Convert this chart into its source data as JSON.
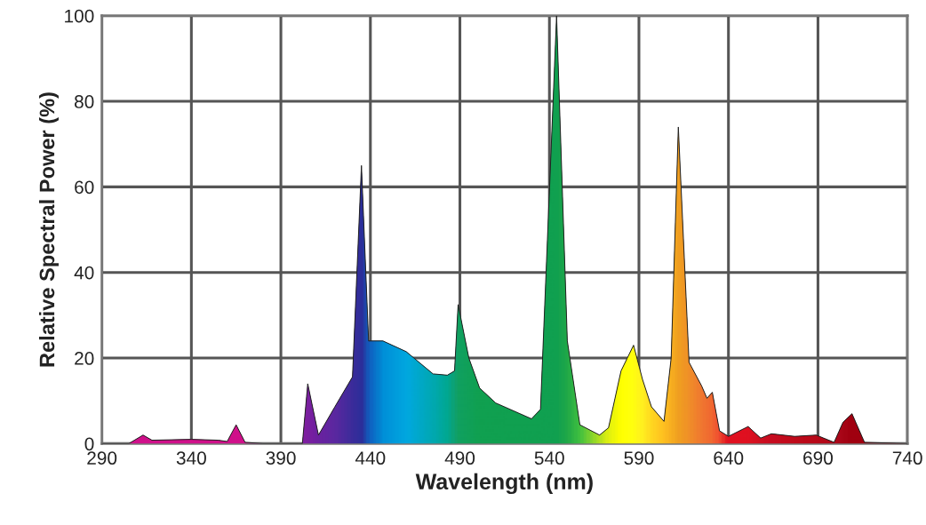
{
  "chart_data": {
    "type": "area",
    "xlabel": "Wavelength (nm)",
    "ylabel": "Relative Spectral Power (%)",
    "xlim": [
      290,
      740
    ],
    "ylim": [
      0,
      100
    ],
    "xticks": [
      290,
      340,
      390,
      440,
      490,
      540,
      590,
      640,
      690,
      740
    ],
    "yticks": [
      0,
      20,
      40,
      60,
      80,
      100
    ],
    "grid": true,
    "legend": false,
    "series": [
      {
        "color": "#202020",
        "x": [
          290,
          305,
          313,
          318,
          340,
          355,
          360,
          365,
          370,
          380,
          400,
          402,
          405,
          411,
          420,
          430,
          435,
          439,
          447,
          460,
          475,
          483,
          487,
          489,
          495,
          501,
          510,
          530,
          535,
          544,
          550,
          557,
          568,
          573,
          580,
          587,
          592,
          597,
          604,
          608,
          612,
          618,
          625,
          628,
          631,
          635,
          640,
          651,
          658,
          664,
          677,
          689,
          699,
          704,
          709,
          716,
          740
        ],
        "values": [
          0,
          0,
          2,
          0.8,
          1,
          0.8,
          0.5,
          4.4,
          0.3,
          0,
          0,
          0,
          14,
          2,
          8.5,
          15.6,
          65,
          24,
          24,
          21.5,
          16.3,
          16,
          17,
          32.5,
          20,
          13,
          9.5,
          5.8,
          8,
          100,
          24,
          4.4,
          2,
          3.7,
          17,
          23,
          15,
          8.6,
          5.2,
          20,
          74,
          19,
          13.5,
          10.6,
          12,
          3,
          1.7,
          4,
          1.3,
          2.3,
          1.7,
          2,
          0.3,
          5,
          7,
          0.3,
          0
        ],
        "colors": [
          "#d0108a",
          "#d0108a",
          "#d0108a",
          "#d0108a",
          "#d0108a",
          "#d0108a",
          "#d0108a",
          "#d0108a",
          "#d0108a",
          "#a01898",
          "#8020a0",
          "#8020a0",
          "#7a1fa0",
          "#6a22a0",
          "#5a28a0",
          "#3a2c9a",
          "#2b2f9a",
          "#1060c0",
          "#0090d8",
          "#00a8e0",
          "#00a8b0",
          "#00a890",
          "#10a070",
          "#10a060",
          "#10a058",
          "#10a050",
          "#10a050",
          "#10a050",
          "#10a050",
          "#10a050",
          "#20a848",
          "#40c040",
          "#b0e020",
          "#e0f010",
          "#ffff00",
          "#ffff10",
          "#fff020",
          "#ffd820",
          "#ffc020",
          "#f8b020",
          "#f0a020",
          "#f09028",
          "#f07830",
          "#f07030",
          "#f06830",
          "#f05030",
          "#e01020",
          "#e01020",
          "#d01020",
          "#c80c20",
          "#c00a1a",
          "#b80818",
          "#b00818",
          "#a80618",
          "#a00010",
          "#a00010",
          "#a00010"
        ]
      }
    ]
  }
}
